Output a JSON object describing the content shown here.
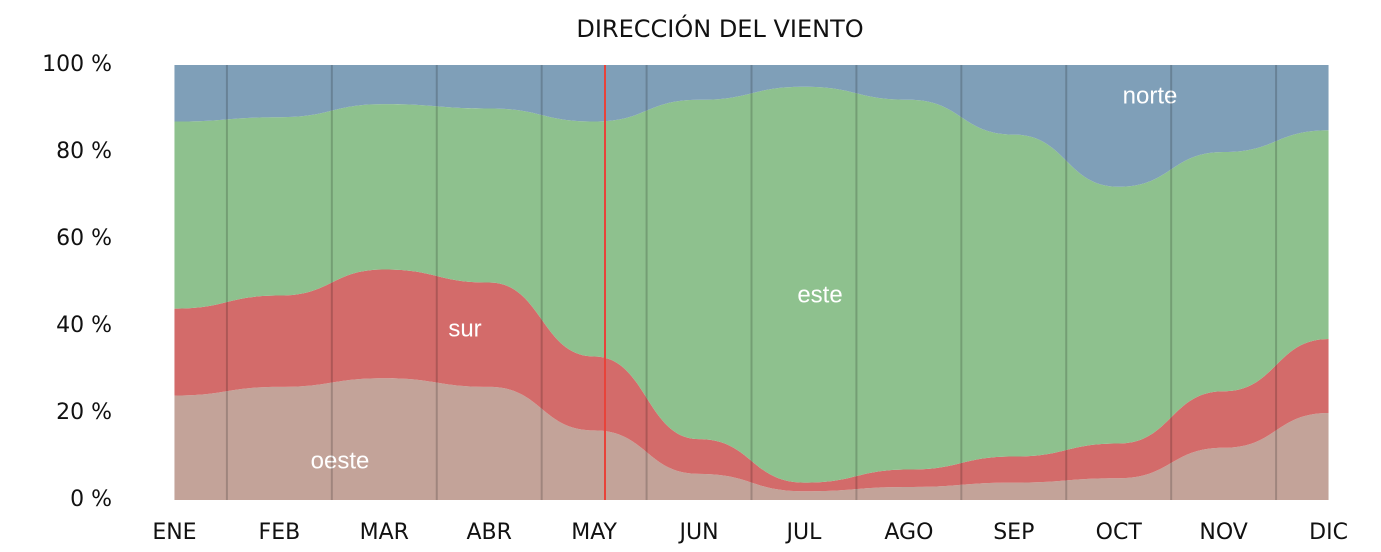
{
  "chart_data": {
    "type": "stacked_area",
    "title": "DIRECCIÓN DEL VIENTO",
    "categories": [
      "ENE",
      "FEB",
      "MAR",
      "ABR",
      "MAY",
      "JUN",
      "JUL",
      "AGO",
      "SEP",
      "OCT",
      "NOV",
      "DIC"
    ],
    "series": [
      {
        "name": "oeste",
        "color": "#c3a399",
        "values": [
          24,
          26,
          28,
          26,
          16,
          6,
          2,
          3,
          4,
          5,
          12,
          20
        ]
      },
      {
        "name": "sur",
        "color": "#d36b6a",
        "values": [
          20,
          21,
          25,
          24,
          17,
          8,
          2,
          4,
          6,
          8,
          13,
          17
        ]
      },
      {
        "name": "este",
        "color": "#8ec18e",
        "values": [
          43,
          41,
          38,
          40,
          54,
          78,
          91,
          85,
          74,
          59,
          55,
          48
        ]
      },
      {
        "name": "norte",
        "color": "#7f9fb8",
        "values": [
          13,
          12,
          9,
          10,
          13,
          8,
          5,
          8,
          16,
          28,
          20,
          15
        ]
      }
    ],
    "ylim": [
      0,
      100
    ],
    "yticks": [
      {
        "value": 0,
        "label": "0 %"
      },
      {
        "value": 20,
        "label": "20 %"
      },
      {
        "value": 40,
        "label": "40 %"
      },
      {
        "value": 60,
        "label": "60 %"
      },
      {
        "value": 80,
        "label": "80 %"
      },
      {
        "value": 100,
        "label": "100 %"
      }
    ]
  }
}
